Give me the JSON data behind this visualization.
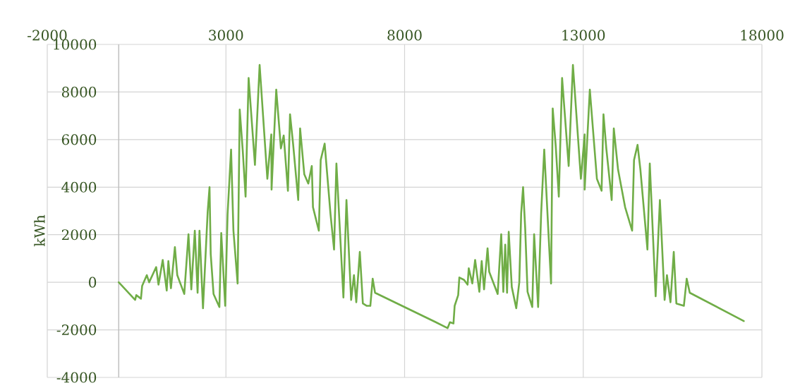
{
  "chart_data": {
    "type": "line",
    "ylabel": "kWh",
    "xlim": [
      -2000,
      18000
    ],
    "xticks": [
      -2000,
      3000,
      8000,
      13000,
      18000
    ],
    "ylim": [
      -4000,
      10000
    ],
    "yticks": [
      -4000,
      -2000,
      0,
      2000,
      4000,
      6000,
      8000,
      10000
    ],
    "grid": true,
    "marker": "none",
    "line_style": "solid",
    "series": [
      {
        "color": "#70ad47",
        "x": [
          0,
          459,
          491,
          622,
          655,
          786,
          851,
          1048,
          1113,
          1231,
          1343,
          1389,
          1461,
          1572,
          1638,
          1834,
          1952,
          2031,
          2129,
          2207,
          2260,
          2358,
          2489,
          2541,
          2574,
          2653,
          2817,
          2869,
          2980,
          3046,
          3144,
          3210,
          3327,
          3386,
          3471,
          3550,
          3635,
          3812,
          3943,
          4159,
          4270,
          4277,
          4408,
          4539,
          4617,
          4735,
          4794,
          4879,
          5023,
          5076,
          5193,
          5305,
          5403,
          5436,
          5600,
          5652,
          5763,
          5927,
          6026,
          6092,
          6288,
          6373,
          6504,
          6583,
          6648,
          6747,
          6832,
          6943,
          7041,
          7107,
          7173,
          8875,
          9203,
          9269,
          9368,
          9401,
          9500,
          9532,
          9664,
          9763,
          9796,
          9895,
          9974,
          10092,
          10158,
          10224,
          10322,
          10368,
          10605,
          10704,
          10763,
          10816,
          10868,
          10914,
          11000,
          11125,
          11210,
          11263,
          11316,
          11375,
          11441,
          11573,
          11625,
          11737,
          11822,
          11908,
          12013,
          12099,
          12145,
          12230,
          12316,
          12408,
          12592,
          12711,
          12934,
          13039,
          13039,
          13184,
          13382,
          13513,
          13566,
          13645,
          13796,
          13855,
          13974,
          14171,
          14368,
          14421,
          14520,
          14599,
          14796,
          14862,
          15026,
          15145,
          15277,
          15342,
          15441,
          15533,
          15606,
          15816,
          15895,
          15981,
          17494
        ],
        "values": [
          0,
          -740,
          -540,
          -690,
          -150,
          300,
          0,
          640,
          -100,
          940,
          -350,
          890,
          -250,
          1480,
          300,
          -490,
          2020,
          -300,
          2170,
          -440,
          2170,
          -1090,
          2960,
          4000,
          1190,
          -490,
          -1040,
          2070,
          -990,
          2860,
          5580,
          2170,
          -50,
          7260,
          5530,
          3600,
          8590,
          4940,
          9140,
          4350,
          6220,
          3900,
          8100,
          5630,
          6170,
          3850,
          7060,
          5830,
          3460,
          6470,
          4540,
          4150,
          4890,
          3160,
          2170,
          5140,
          5830,
          2860,
          1380,
          4990,
          -640,
          3460,
          -740,
          300,
          -840,
          1280,
          -890,
          -990,
          -990,
          150,
          -440,
          -1680,
          -1930,
          -1680,
          -1730,
          -990,
          -540,
          200,
          100,
          -100,
          590,
          -50,
          940,
          -400,
          890,
          -300,
          1430,
          440,
          -490,
          2020,
          -400,
          1580,
          -440,
          2120,
          -200,
          -1090,
          0,
          2910,
          4000,
          2270,
          -400,
          -1040,
          2020,
          -1040,
          2910,
          5580,
          2470,
          -50,
          7310,
          5730,
          3600,
          8590,
          4890,
          9140,
          4350,
          6220,
          3900,
          8100,
          4350,
          3850,
          7060,
          5630,
          3460,
          6470,
          4740,
          3160,
          2170,
          5140,
          5780,
          4740,
          1380,
          4990,
          -590,
          3460,
          -740,
          300,
          -840,
          1280,
          -890,
          -990,
          150,
          -440,
          -1630
        ]
      }
    ]
  }
}
